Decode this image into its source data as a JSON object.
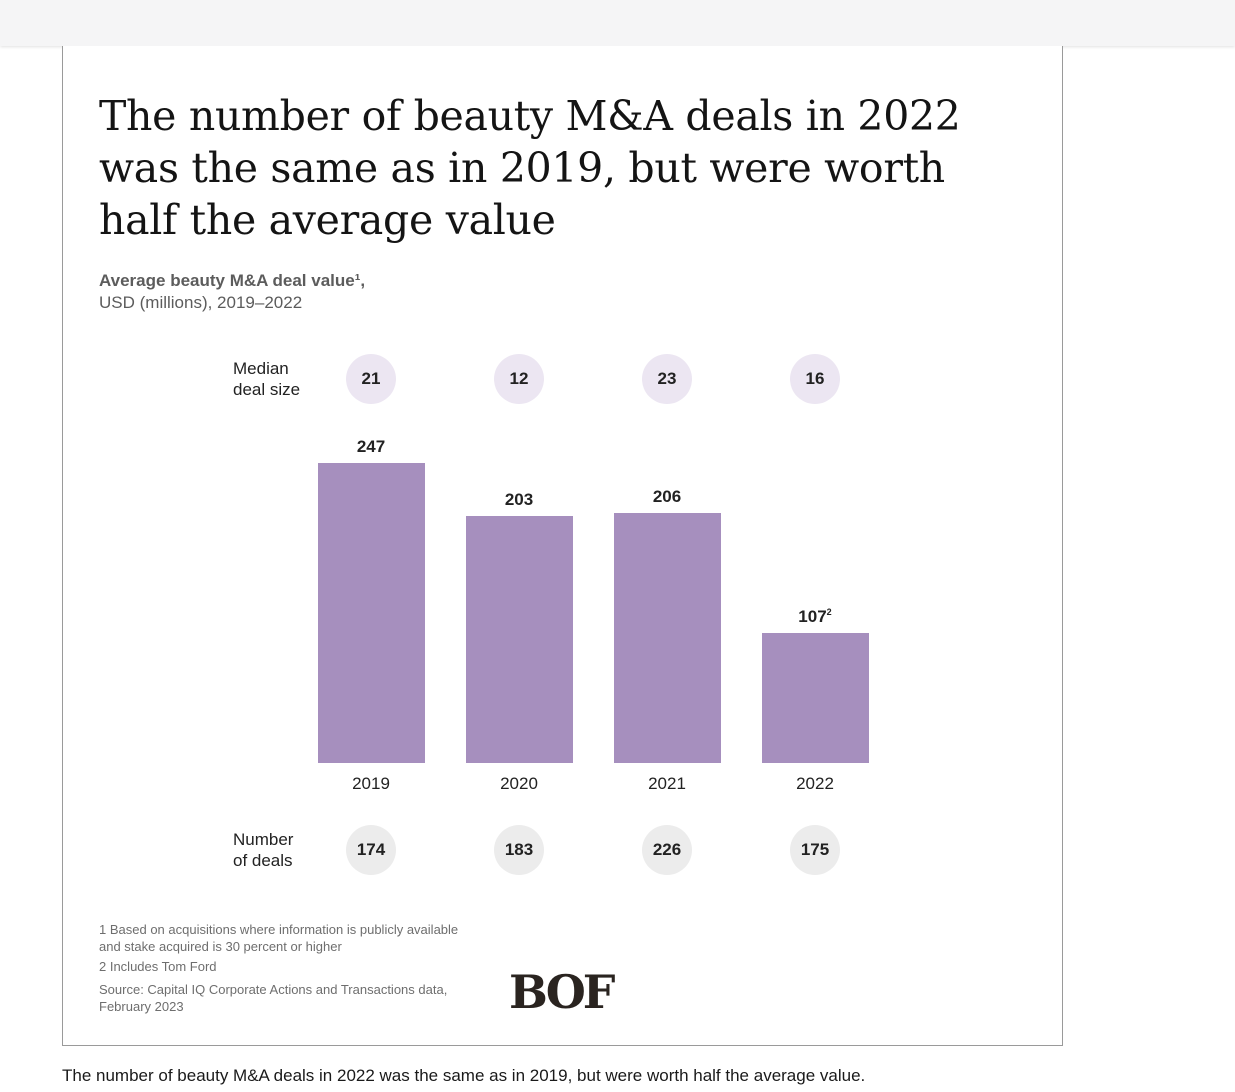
{
  "caption": "The number of beauty M&A deals in 2022 was the same as in 2019, but were worth half the average value.",
  "chart_data": {
    "type": "bar",
    "title": "The number of beauty M&A deals in 2022 was the same as in 2019, but were worth half the average value",
    "subtitle_bold": "Average beauty M&A deal value¹,",
    "subtitle": "USD (millions), 2019–2022",
    "categories": [
      "2019",
      "2020",
      "2021",
      "2022"
    ],
    "values": [
      247,
      203,
      206,
      107
    ],
    "value_labels": [
      "247",
      "203",
      "206",
      "107"
    ],
    "value_footnotes": [
      "",
      "",
      "",
      "2"
    ],
    "ylim": [
      0,
      247
    ],
    "bar_color": "#a68fbe",
    "median_label": [
      "Median",
      "deal size"
    ],
    "median_deal_size": [
      "21",
      "12",
      "23",
      "16"
    ],
    "deals_label": [
      "Number",
      "of deals"
    ],
    "number_of_deals": [
      "174",
      "183",
      "226",
      "175"
    ]
  },
  "footnotes": {
    "fn1": "1 Based on acquisitions where information is publicly available and stake acquired is 30 percent or higher",
    "fn2": "2 Includes Tom Ford",
    "source": "Source: Capital IQ Corporate Actions and Transactions data, February 2023"
  },
  "logo": {
    "text": "BOF",
    "color": "#2a2420"
  }
}
